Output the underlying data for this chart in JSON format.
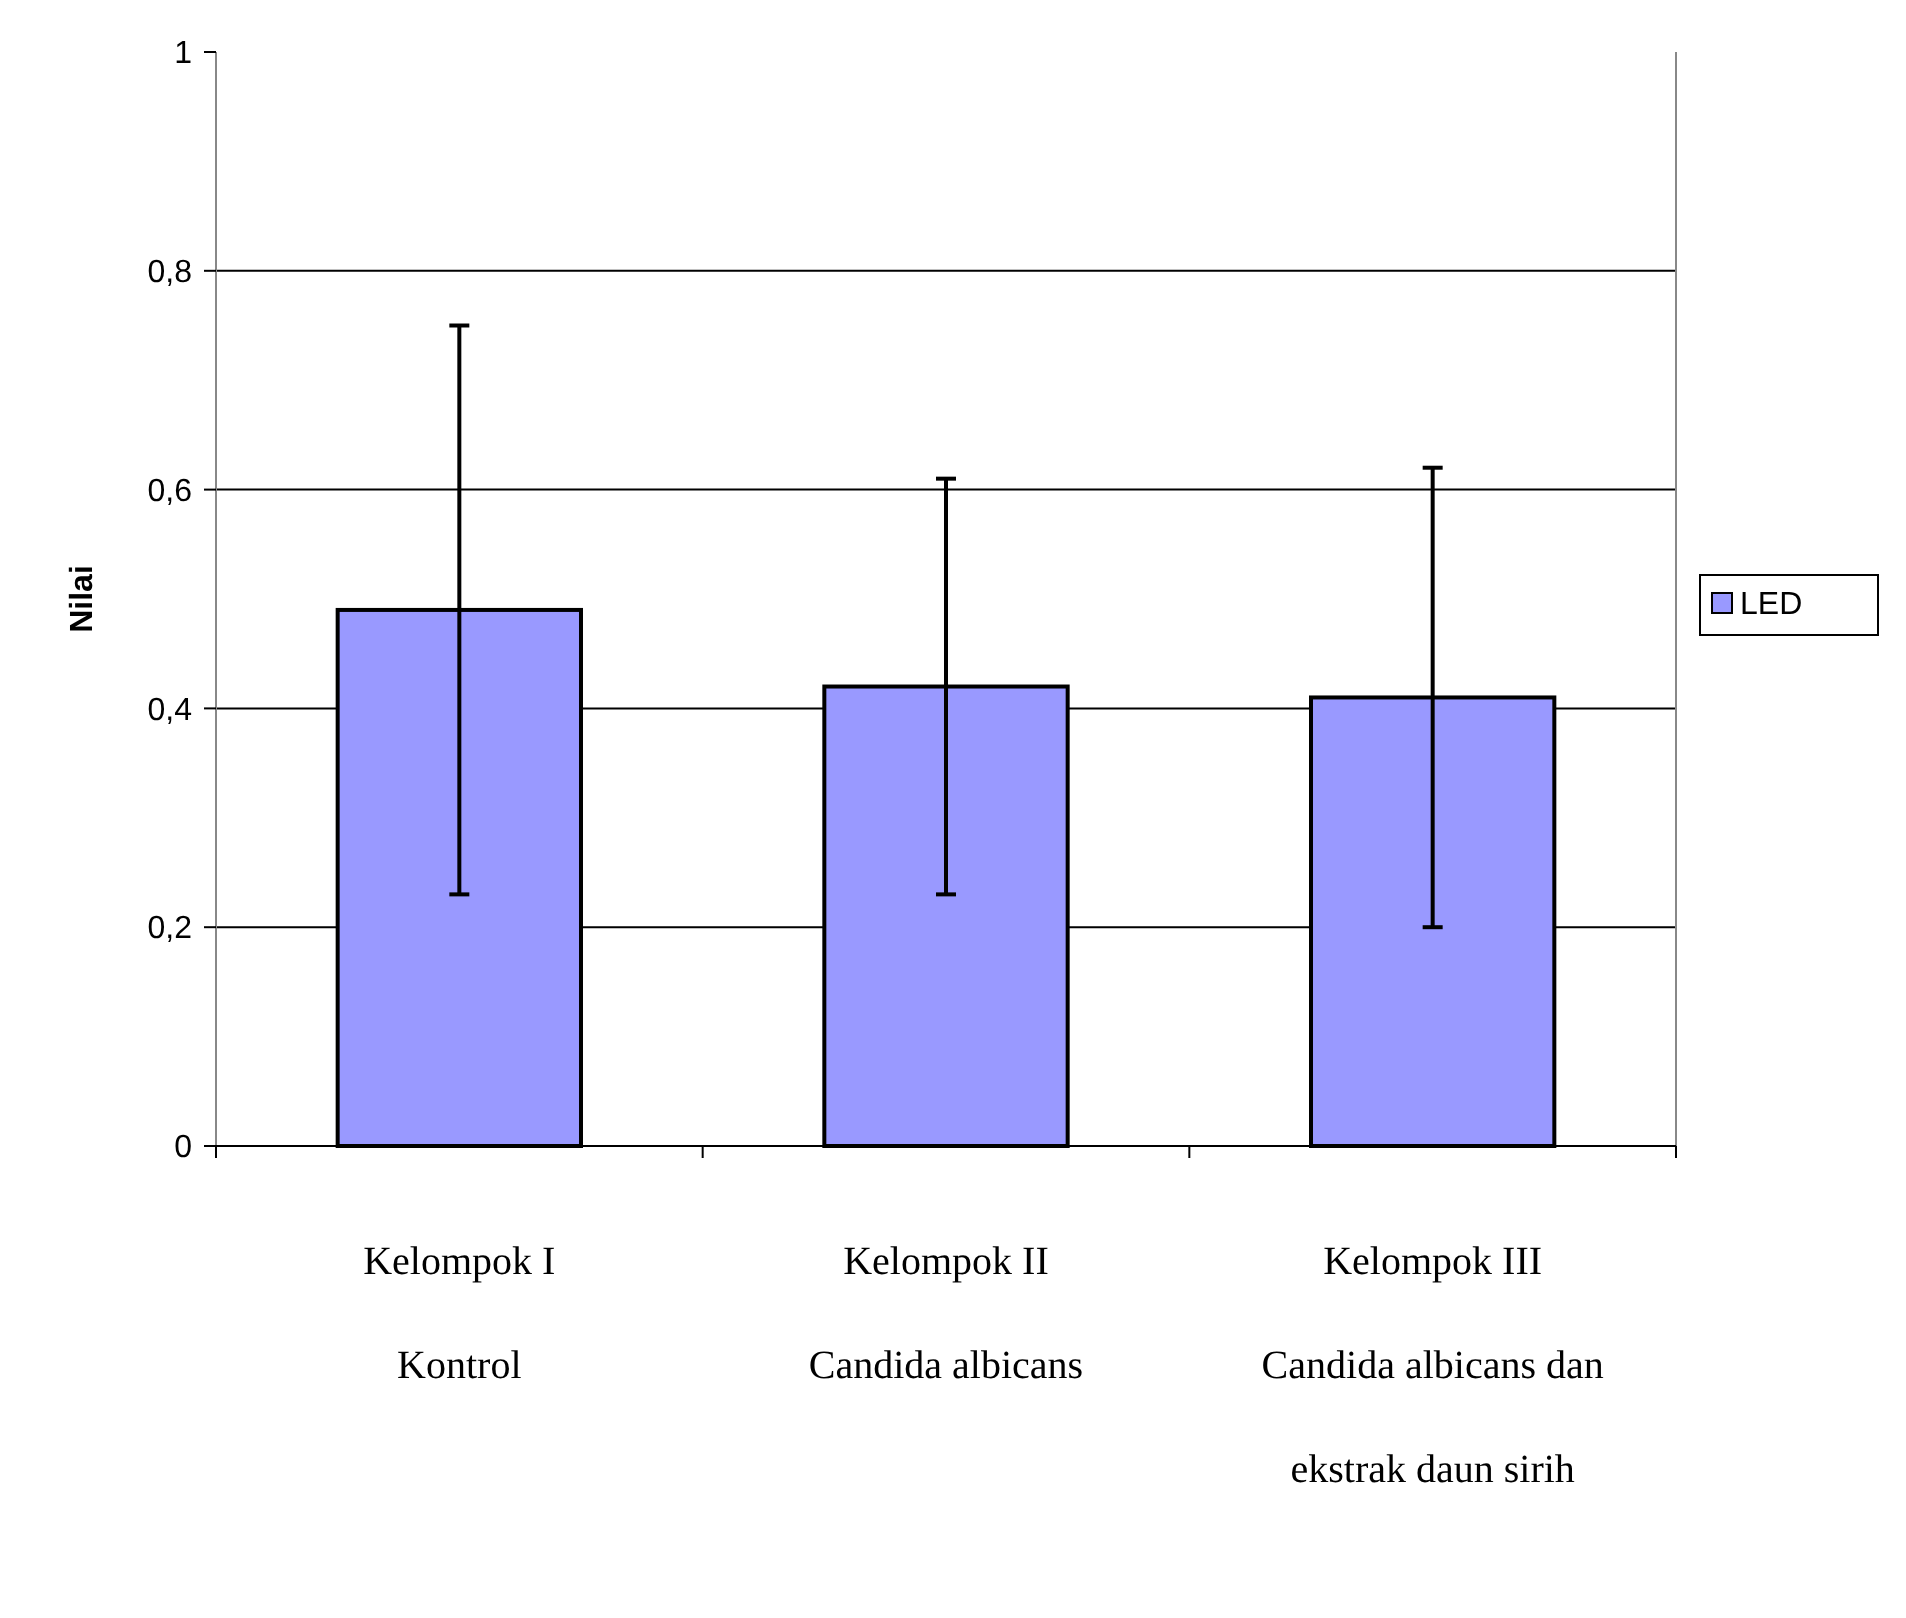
{
  "chart_data": {
    "type": "bar",
    "ylabel": "Nilai",
    "categories": [
      "Kelompok I\nKontrol",
      "Kelompok II\nCandida albicans",
      "Kelompok III\nCandida albicans dan\nekstrak daun sirih"
    ],
    "series": [
      {
        "name": "LED",
        "color": "#9999ff",
        "values": [
          0.49,
          0.42,
          0.41
        ],
        "errors": [
          0.26,
          0.19,
          0.21
        ]
      }
    ],
    "ylim": [
      0,
      1
    ],
    "yticks": [
      {
        "value": 0,
        "label": "0"
      },
      {
        "value": 0.2,
        "label": "0,2"
      },
      {
        "value": 0.4,
        "label": "0,4"
      },
      {
        "value": 0.6,
        "label": "0,6"
      },
      {
        "value": 0.8,
        "label": "0,8"
      },
      {
        "value": 1,
        "label": "1"
      }
    ],
    "grid": "y",
    "legend": "right"
  }
}
